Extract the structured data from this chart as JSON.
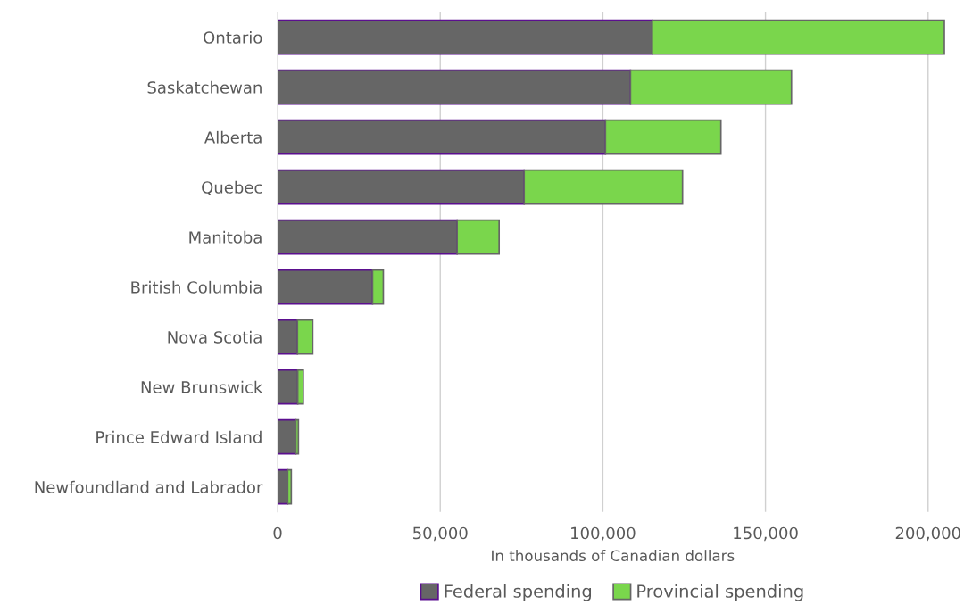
{
  "chart_data": {
    "type": "bar",
    "orientation": "horizontal",
    "stacked": true,
    "categories": [
      "Ontario",
      "Saskatchewan",
      "Alberta",
      "Quebec",
      "Manitoba",
      "British Columbia",
      "Nova Scotia",
      "New Brunswick",
      "Prince Edward Island",
      "Newfoundland and Labrador"
    ],
    "series": [
      {
        "name": "Federal spending",
        "color": "#666666",
        "values": [
          115200,
          108500,
          100800,
          75800,
          55200,
          29200,
          6100,
          6200,
          5600,
          3100
        ]
      },
      {
        "name": "Provincial spending",
        "color": "#7ad64c",
        "values": [
          89800,
          49500,
          35500,
          48700,
          12900,
          3300,
          4700,
          1700,
          800,
          1100
        ]
      }
    ],
    "xlim": [
      0,
      206000
    ],
    "xticks": [
      0,
      {
        "value": 50000,
        "label": "50,000"
      },
      {
        "value": 100000,
        "label": "100,000"
      },
      {
        "value": 150000,
        "label": "150,000"
      },
      {
        "value": 200000,
        "label": "200,000"
      }
    ],
    "xlabel": "In thousands of Canadian dollars",
    "grid": "x",
    "legend": "bottom"
  }
}
